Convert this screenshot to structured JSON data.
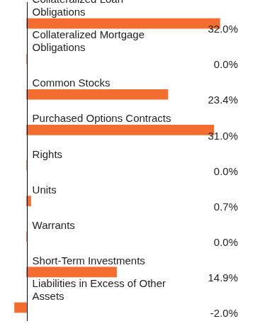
{
  "chart_data": {
    "type": "bar",
    "orientation": "horizontal",
    "categories": [
      "Collateralized Loan Obligations",
      "Collateralized Mortgage Obligations",
      "Common Stocks",
      "Purchased Options Contracts",
      "Rights",
      "Units",
      "Warrants",
      "Short-Term Investments",
      "Liabilities in Excess of Other Assets"
    ],
    "values": [
      32.0,
      0.0,
      23.4,
      31.0,
      0.0,
      0.7,
      0.0,
      14.9,
      -2.0
    ],
    "value_labels": [
      "32.0%",
      "0.0%",
      "23.4%",
      "31.0%",
      "0.0%",
      "0.7%",
      "0.0%",
      "14.9%",
      "-2.0%"
    ],
    "color": "#f26d2f",
    "xlim": [
      -3,
      35
    ],
    "grid": false,
    "tick_labels": false,
    "data_labels": true
  }
}
